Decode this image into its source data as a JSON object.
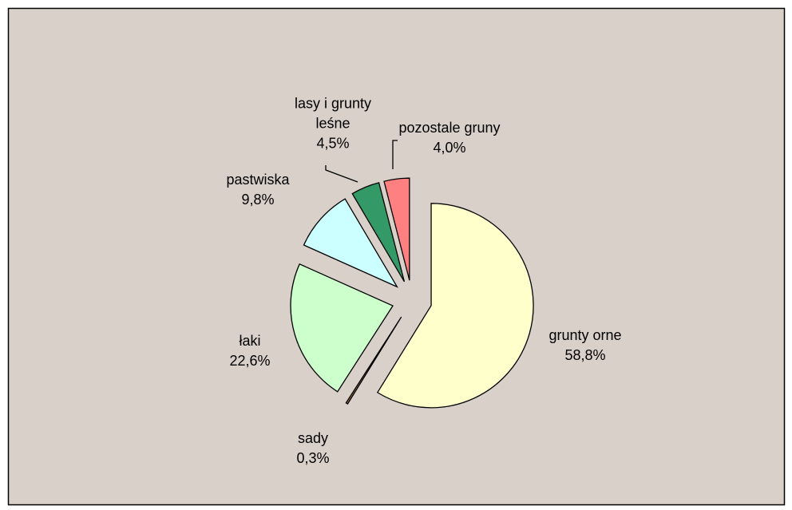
{
  "chart_data": {
    "type": "pie",
    "categories": [
      "grunty orne",
      "sady",
      "łaki",
      "pastwiska",
      "lasy i grunty leśne",
      "pozostale gruny"
    ],
    "values": [
      58.8,
      0.3,
      22.6,
      9.8,
      4.5,
      4.0
    ],
    "value_labels": [
      "58,8%",
      "0,3%",
      "22,6%",
      "9,8%",
      "4,5%",
      "4,0%"
    ],
    "colors": [
      "#ffffcc",
      "#996633",
      "#ccffcc",
      "#ccffff",
      "#339966",
      "#ff8080"
    ],
    "exploded": true
  }
}
